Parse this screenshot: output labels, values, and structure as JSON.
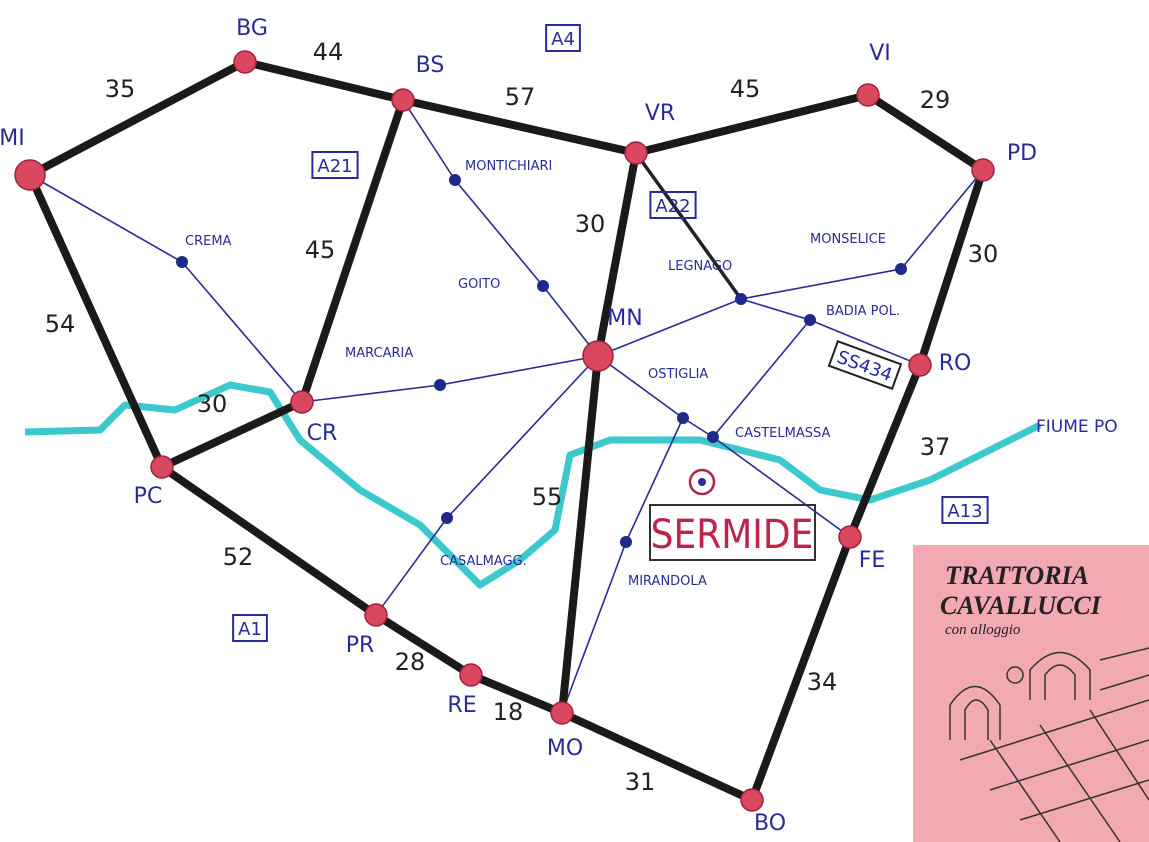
{
  "cities": [
    "MI",
    "BG",
    "BS",
    "VR",
    "VI",
    "PD",
    "RO",
    "FE",
    "BO",
    "MO",
    "RE",
    "PR",
    "PC",
    "CR",
    "MN"
  ],
  "towns": [
    "MONTICHIARI",
    "CREMA",
    "GOITO",
    "LEGNAGO",
    "MONSELICE",
    "BADIA POL.",
    "MARCARIA",
    "OSTIGLIA",
    "CASTELMASSA",
    "CASALMAGG.",
    "MIRANDOLA"
  ],
  "distances": [
    "35",
    "44",
    "57",
    "45",
    "29",
    "30",
    "37",
    "34",
    "31",
    "18",
    "28",
    "52",
    "54",
    "30",
    "45",
    "30",
    "55"
  ],
  "roads": [
    "A4",
    "A21",
    "A22",
    "A1",
    "A13",
    "SS434"
  ],
  "river": "FIUME PO",
  "highlight": "SERMIDE",
  "card": {
    "title": "TRATTORIA",
    "name": "CAVALLUCCI",
    "subtitle": "con alloggio"
  }
}
